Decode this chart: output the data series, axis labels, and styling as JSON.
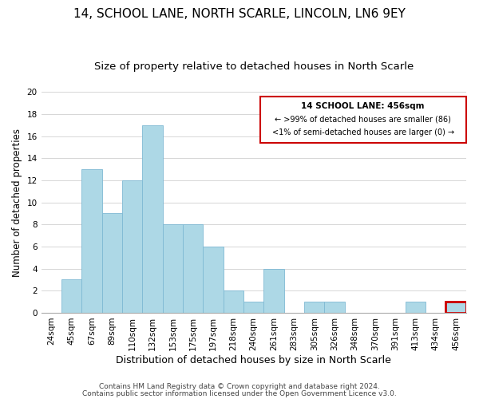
{
  "title": "14, SCHOOL LANE, NORTH SCARLE, LINCOLN, LN6 9EY",
  "subtitle": "Size of property relative to detached houses in North Scarle",
  "xlabel": "Distribution of detached houses by size in North Scarle",
  "ylabel": "Number of detached properties",
  "bar_labels": [
    "24sqm",
    "45sqm",
    "67sqm",
    "89sqm",
    "110sqm",
    "132sqm",
    "153sqm",
    "175sqm",
    "197sqm",
    "218sqm",
    "240sqm",
    "261sqm",
    "283sqm",
    "305sqm",
    "326sqm",
    "348sqm",
    "370sqm",
    "391sqm",
    "413sqm",
    "434sqm",
    "456sqm"
  ],
  "bar_values": [
    0,
    3,
    13,
    9,
    12,
    17,
    8,
    8,
    6,
    2,
    1,
    4,
    0,
    1,
    1,
    0,
    0,
    0,
    1,
    0,
    1
  ],
  "bar_color": "#add8e6",
  "bar_edge_color": "#7fb9d4",
  "highlight_index": 20,
  "highlight_edge_color": "#cc0000",
  "ylim": [
    0,
    20
  ],
  "yticks": [
    0,
    2,
    4,
    6,
    8,
    10,
    12,
    14,
    16,
    18,
    20
  ],
  "annotation_title": "14 SCHOOL LANE: 456sqm",
  "annotation_line1": "← >99% of detached houses are smaller (86)",
  "annotation_line2": "<1% of semi-detached houses are larger (0) →",
  "annotation_box_color": "#ffffff",
  "annotation_box_edge": "#cc0000",
  "footer_line1": "Contains HM Land Registry data © Crown copyright and database right 2024.",
  "footer_line2": "Contains public sector information licensed under the Open Government Licence v3.0.",
  "title_fontsize": 11,
  "subtitle_fontsize": 9.5,
  "xlabel_fontsize": 9,
  "ylabel_fontsize": 8.5,
  "tick_fontsize": 7.5,
  "footer_fontsize": 6.5
}
